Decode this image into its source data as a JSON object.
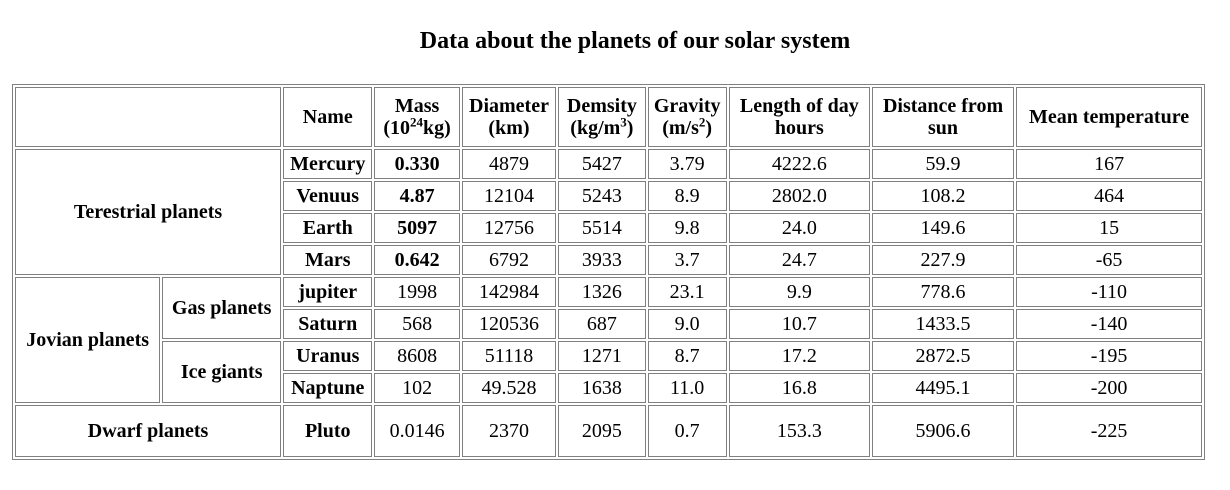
{
  "title": "Data about the planets of our solar system",
  "header": {
    "name": "Name",
    "mass_base": "Mass",
    "mass_unit_pre": "(10",
    "mass_unit_sup": "24",
    "mass_unit_post": "kg)",
    "diameter_1": "Diameter",
    "diameter_2": "(km)",
    "density_1": "Demsity",
    "density_unit_pre": "(kg/m",
    "density_unit_sup": "3",
    "density_unit_post": ")",
    "gravity_1": "Gravity",
    "gravity_unit_pre": "(m/s",
    "gravity_unit_sup": "2",
    "gravity_unit_post": ")",
    "day_1": "Length of day",
    "day_2": "hours",
    "distance_1": "Distance from",
    "distance_2": "sun",
    "temperature": "Mean temperature"
  },
  "groups": {
    "terrestrial": "Terestrial planets",
    "jovian": "Jovian planets",
    "gas": "Gas planets",
    "ice": "Ice giants",
    "dwarf": "Dwarf planets"
  },
  "rows": [
    {
      "name": "Mercury",
      "mass": "0.330",
      "diameter": "4879",
      "density": "5427",
      "gravity": "3.79",
      "day": "4222.6",
      "distance": "59.9",
      "temp": "167"
    },
    {
      "name": "Venuus",
      "mass": "4.87",
      "diameter": "12104",
      "density": "5243",
      "gravity": "8.9",
      "day": "2802.0",
      "distance": "108.2",
      "temp": "464"
    },
    {
      "name": "Earth",
      "mass": "5097",
      "diameter": "12756",
      "density": "5514",
      "gravity": "9.8",
      "day": "24.0",
      "distance": "149.6",
      "temp": "15"
    },
    {
      "name": "Mars",
      "mass": "0.642",
      "diameter": "6792",
      "density": "3933",
      "gravity": "3.7",
      "day": "24.7",
      "distance": "227.9",
      "temp": "-65"
    },
    {
      "name": "jupiter",
      "mass": "1998",
      "diameter": "142984",
      "density": "1326",
      "gravity": "23.1",
      "day": "9.9",
      "distance": "778.6",
      "temp": "-110"
    },
    {
      "name": "Saturn",
      "mass": "568",
      "diameter": "120536",
      "density": "687",
      "gravity": "9.0",
      "day": "10.7",
      "distance": "1433.5",
      "temp": "-140"
    },
    {
      "name": "Uranus",
      "mass": "8608",
      "diameter": "51118",
      "density": "1271",
      "gravity": "8.7",
      "day": "17.2",
      "distance": "2872.5",
      "temp": "-195"
    },
    {
      "name": "Naptune",
      "mass": "102",
      "diameter": "49.528",
      "density": "1638",
      "gravity": "11.0",
      "day": "16.8",
      "distance": "4495.1",
      "temp": "-200"
    },
    {
      "name": "Pluto",
      "mass": "0.0146",
      "diameter": "2370",
      "density": "2095",
      "gravity": "0.7",
      "day": "153.3",
      "distance": "5906.6",
      "temp": "-225"
    }
  ]
}
